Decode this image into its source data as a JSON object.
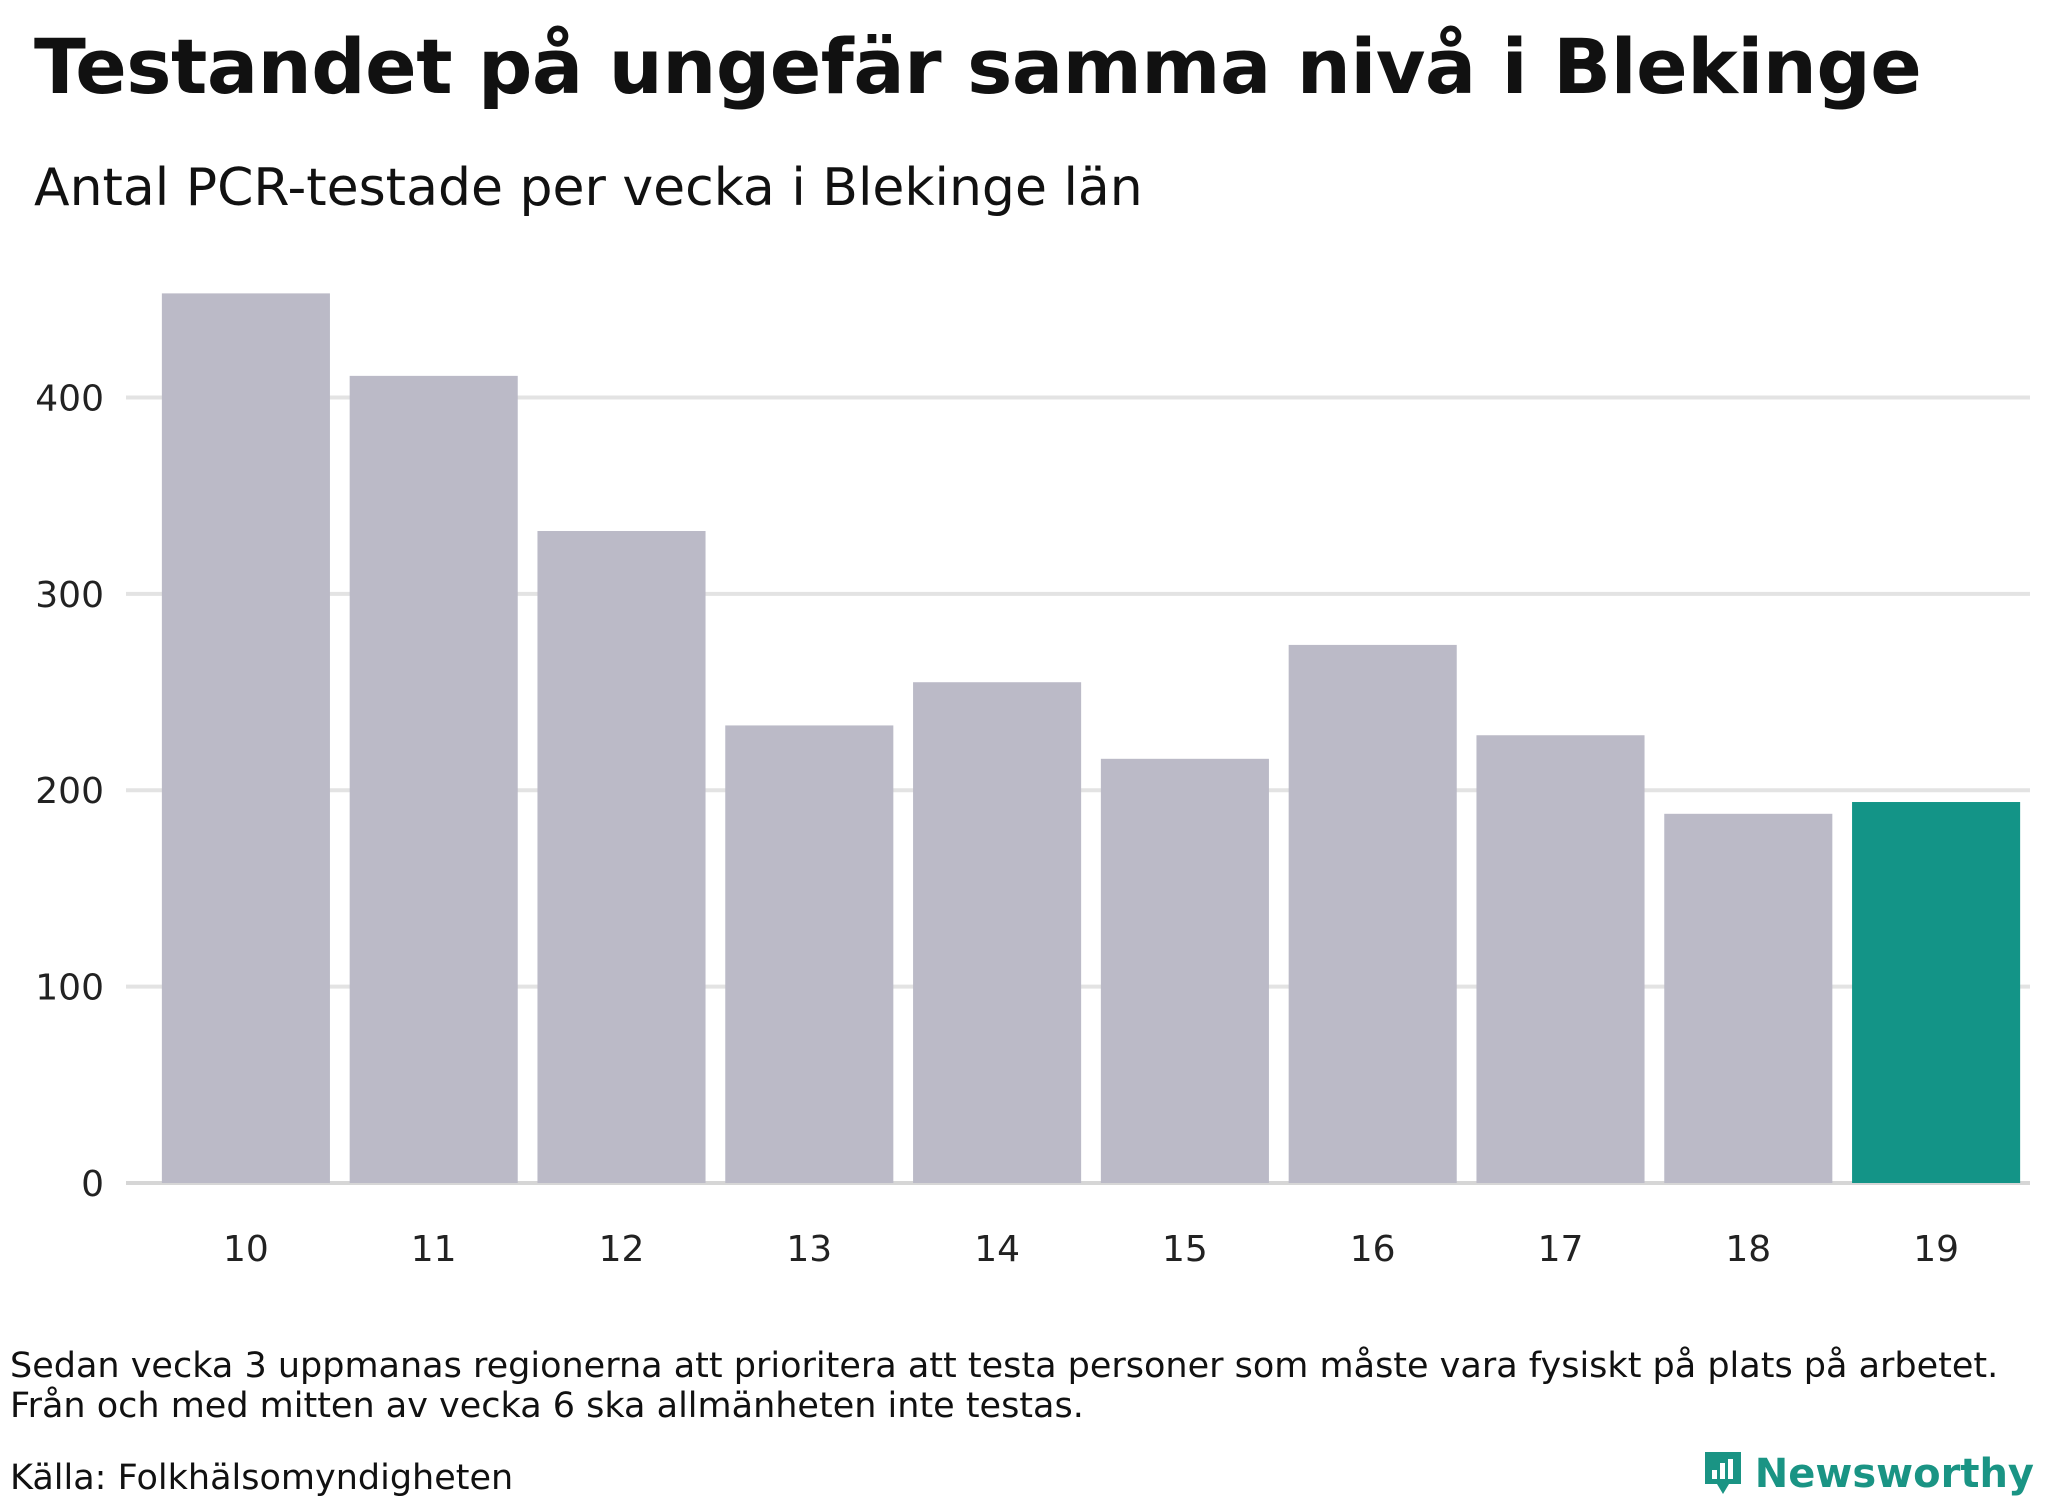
{
  "title": "Testandet på ungefär samma nivå i Blekinge",
  "subtitle": "Antal PCR-testade per vecka i Blekinge län",
  "notes": [
    "Sedan vecka 3 uppmanas regionerna att prioritera att testa personer som måste vara fysiskt på plats på arbetet.",
    "Från och med mitten av vecka 6 ska allmänheten inte testas."
  ],
  "source": "Källa: Folkhälsomyndigheten",
  "brand": {
    "name": "Newsworthy",
    "icon": "newsworthy-logo-icon",
    "color": "#1a9484"
  },
  "colors": {
    "bar": "#bbbac7",
    "highlight": "#139487",
    "grid": "#e3e3e3",
    "axis": "#d6d6d6"
  },
  "chart_data": {
    "type": "bar",
    "categories": [
      "10",
      "11",
      "12",
      "13",
      "14",
      "15",
      "16",
      "17",
      "18",
      "19"
    ],
    "values": [
      453,
      411,
      332,
      233,
      255,
      216,
      274,
      228,
      188,
      194
    ],
    "highlight_index": 9,
    "ylim": [
      0,
      470
    ],
    "yticks": [
      0,
      100,
      200,
      300,
      400
    ],
    "title": "",
    "xlabel": "",
    "ylabel": "",
    "grid": true,
    "legend": "none"
  }
}
